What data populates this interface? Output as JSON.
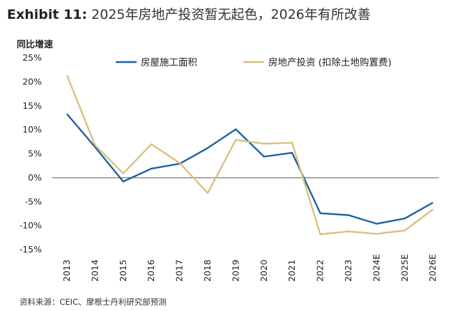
{
  "header": {
    "exhibit_label": "Exhibit 11:",
    "title_text": "2025年房地产投资暂无起色，2026年有所改善"
  },
  "source": "资料来源：CEIC、摩根士丹利研究部预测",
  "chart_data": {
    "type": "line",
    "ylabel": "同比增速",
    "ylim": [
      -15,
      25
    ],
    "yticks": [
      25,
      20,
      15,
      10,
      5,
      0,
      -5,
      -10,
      -15
    ],
    "ytick_labels": [
      "25%",
      "20%",
      "15%",
      "10%",
      "5%",
      "0%",
      "-5%",
      "-10%",
      "-15%"
    ],
    "categories": [
      "2013",
      "2014",
      "2015",
      "2016",
      "2017",
      "2018",
      "2019",
      "2020",
      "2021",
      "2022",
      "2023",
      "2024E",
      "2025E",
      "2026E"
    ],
    "legend_position": "top",
    "series": [
      {
        "name": "房屋施工面积",
        "color": "#1f5fa3",
        "values": [
          13.3,
          6.4,
          -0.8,
          1.9,
          2.9,
          6.2,
          10.1,
          4.4,
          5.2,
          -7.4,
          -7.8,
          -9.6,
          -8.5,
          -5.2
        ]
      },
      {
        "name": "房地产投资 (扣除土地购置费)",
        "color": "#d8c07f",
        "values": [
          21.4,
          6.8,
          0.9,
          7.0,
          3.1,
          -3.2,
          7.9,
          7.1,
          7.3,
          -11.8,
          -11.2,
          -11.7,
          -11.0,
          -6.6
        ]
      }
    ]
  }
}
